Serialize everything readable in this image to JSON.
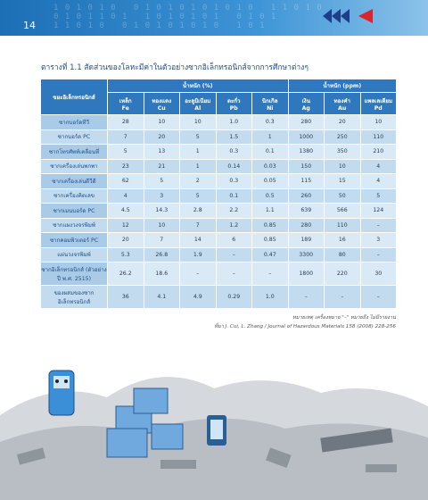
{
  "header": {
    "page_number": "14"
  },
  "caption": "ตารางที่ 1.1  สัดส่วนของโลหะมีค่าในตัวอย่างซากอิเล็กทรอนิกส์จากการศึกษาต่างๆ",
  "table": {
    "row_header": "ขยะอิเล็กทรอนิกส์",
    "group_headers": [
      "น้ำหนัก (%)",
      "น้ำหนัก (ppm)"
    ],
    "columns": [
      {
        "name": "เหล็ก",
        "symbol": "Fe"
      },
      {
        "name": "ทองแดง",
        "symbol": "Cu"
      },
      {
        "name": "อะลูมิเนียม",
        "symbol": "Al"
      },
      {
        "name": "ตะกั่ว",
        "symbol": "Pb"
      },
      {
        "name": "นิกเกิล",
        "symbol": "Ni"
      },
      {
        "name": "เงิน",
        "symbol": "Ag"
      },
      {
        "name": "ทองคำ",
        "symbol": "Au"
      },
      {
        "name": "แพลเลเดียม",
        "symbol": "Pd"
      }
    ],
    "rows": [
      {
        "label": "ซากบอร์ดทีวี",
        "cells": [
          "28",
          "10",
          "10",
          "1.0",
          "0.3",
          "280",
          "20",
          "10"
        ]
      },
      {
        "label": "ซากบอร์ด PC",
        "cells": [
          "7",
          "20",
          "5",
          "1.5",
          "1",
          "1000",
          "250",
          "110"
        ]
      },
      {
        "label": "ซากโทรศัพท์เคลื่อนที่",
        "cells": [
          "5",
          "13",
          "1",
          "0.3",
          "0.1",
          "1380",
          "350",
          "210"
        ]
      },
      {
        "label": "ซากเครื่องเล่นพกพา",
        "cells": [
          "23",
          "21",
          "1",
          "0.14",
          "0.03",
          "150",
          "10",
          "4"
        ]
      },
      {
        "label": "ซากเครื่องเล่นดีวีดี",
        "cells": [
          "62",
          "5",
          "2",
          "0.3",
          "0.05",
          "115",
          "15",
          "4"
        ]
      },
      {
        "label": "ซากเครื่องคิดเลข",
        "cells": [
          "4",
          "3",
          "5",
          "0.1",
          "0.5",
          "260",
          "50",
          "5"
        ]
      },
      {
        "label": "ซากเมนบอร์ด PC",
        "cells": [
          "4.5",
          "14.3",
          "2.8",
          "2.2",
          "1.1",
          "639",
          "566",
          "124"
        ]
      },
      {
        "label": "ซากแผงวงจรพิมพ์",
        "cells": [
          "12",
          "10",
          "7",
          "1.2",
          "0.85",
          "280",
          "110",
          "–"
        ]
      },
      {
        "label": "ซากคอมพิวเตอร์ PC",
        "cells": [
          "20",
          "7",
          "14",
          "6",
          "0.85",
          "189",
          "16",
          "3"
        ]
      },
      {
        "label": "แผ่นวงจรพิมพ์",
        "cells": [
          "5.3",
          "26.8",
          "1.9",
          "–",
          "0.47",
          "3300",
          "80",
          "–"
        ]
      },
      {
        "label": "ซากอิเล็กทรอนิกส์ (ตัวอย่างปี พ.ศ. 2515)",
        "cells": [
          "26.2",
          "18.6",
          "–",
          "–",
          "–",
          "1800",
          "220",
          "30"
        ]
      },
      {
        "label": "ของผสมของซากอิเล็กทรอนิกส์",
        "cells": [
          "36",
          "4.1",
          "4.9",
          "0.29",
          "1.0",
          "–",
          "–",
          "–"
        ]
      }
    ]
  },
  "notes": [
    "หมายเหตุ   เครื่องหมาย \"–\" หมายถึง ไม่มีรายงาน",
    "ที่มา J. Cui, L. Zhang / Journal of Hazardous Materials 158 (2008) 228-256"
  ]
}
